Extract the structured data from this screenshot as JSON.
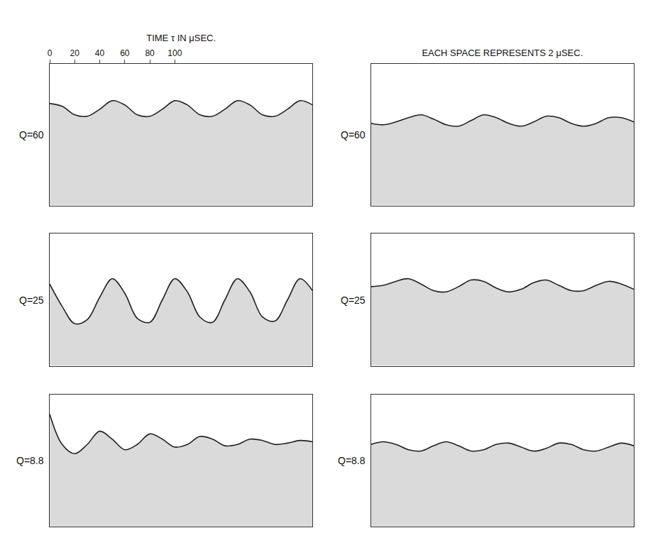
{
  "chart_data": [
    {
      "type": "line",
      "title": "Q=60",
      "xlabel": "TIME τ IN μSEC.",
      "xlim": [
        0,
        210
      ],
      "xticks": [
        0,
        20,
        40,
        60,
        80,
        100
      ],
      "ylim": [
        0,
        1
      ],
      "tick_labels": "x",
      "grid": false,
      "color": "#222222",
      "x": [
        0,
        10,
        20,
        30,
        40,
        50,
        60,
        70,
        80,
        90,
        100,
        110,
        120,
        130,
        140,
        150,
        160,
        170,
        180,
        190,
        200,
        210
      ],
      "values": [
        0.72,
        0.7,
        0.64,
        0.63,
        0.68,
        0.74,
        0.71,
        0.64,
        0.63,
        0.68,
        0.74,
        0.71,
        0.64,
        0.63,
        0.68,
        0.74,
        0.71,
        0.64,
        0.63,
        0.68,
        0.74,
        0.71
      ]
    },
    {
      "type": "line",
      "title": "Q=60",
      "xlabel": "EACH SPACE REPRESENTS 2 μSEC.",
      "xlim": [
        0,
        210
      ],
      "ylim": [
        0,
        1
      ],
      "tick_labels": false,
      "grid": false,
      "color": "#222222",
      "x": [
        0,
        10,
        20,
        30,
        40,
        50,
        60,
        70,
        80,
        90,
        100,
        110,
        120,
        130,
        140,
        150,
        160,
        170,
        180,
        190,
        200,
        210
      ],
      "values": [
        0.58,
        0.57,
        0.59,
        0.62,
        0.64,
        0.61,
        0.57,
        0.56,
        0.6,
        0.64,
        0.62,
        0.58,
        0.56,
        0.59,
        0.63,
        0.62,
        0.58,
        0.56,
        0.58,
        0.62,
        0.62,
        0.59
      ]
    },
    {
      "type": "line",
      "title": "Q=25",
      "xlim": [
        0,
        210
      ],
      "ylim": [
        0,
        1
      ],
      "tick_labels": false,
      "grid": false,
      "color": "#222222",
      "x": [
        0,
        10,
        20,
        30,
        40,
        50,
        60,
        70,
        80,
        90,
        100,
        110,
        120,
        130,
        140,
        150,
        160,
        170,
        180,
        190,
        200,
        210
      ],
      "values": [
        0.62,
        0.45,
        0.32,
        0.35,
        0.52,
        0.66,
        0.55,
        0.36,
        0.33,
        0.5,
        0.66,
        0.56,
        0.37,
        0.33,
        0.5,
        0.66,
        0.56,
        0.37,
        0.34,
        0.5,
        0.66,
        0.57
      ]
    },
    {
      "type": "line",
      "title": "Q=25",
      "xlim": [
        0,
        210
      ],
      "ylim": [
        0,
        1
      ],
      "tick_labels": false,
      "grid": false,
      "color": "#222222",
      "x": [
        0,
        10,
        20,
        30,
        40,
        50,
        60,
        70,
        80,
        90,
        100,
        110,
        120,
        130,
        140,
        150,
        160,
        170,
        180,
        190,
        200,
        210
      ],
      "values": [
        0.6,
        0.61,
        0.64,
        0.66,
        0.62,
        0.57,
        0.56,
        0.6,
        0.65,
        0.64,
        0.59,
        0.56,
        0.58,
        0.63,
        0.65,
        0.61,
        0.57,
        0.57,
        0.61,
        0.64,
        0.62,
        0.58
      ]
    },
    {
      "type": "line",
      "title": "Q=8.8",
      "xlim": [
        0,
        210
      ],
      "ylim": [
        0,
        1
      ],
      "tick_labels": false,
      "grid": false,
      "color": "#222222",
      "x": [
        0,
        10,
        20,
        30,
        40,
        50,
        60,
        70,
        80,
        90,
        100,
        110,
        120,
        130,
        140,
        150,
        160,
        170,
        180,
        190,
        200,
        210
      ],
      "values": [
        0.85,
        0.62,
        0.55,
        0.62,
        0.72,
        0.66,
        0.58,
        0.62,
        0.7,
        0.66,
        0.6,
        0.62,
        0.68,
        0.66,
        0.61,
        0.62,
        0.66,
        0.65,
        0.62,
        0.63,
        0.65,
        0.64
      ]
    },
    {
      "type": "line",
      "title": "Q=8.8",
      "xlim": [
        0,
        210
      ],
      "ylim": [
        0,
        1
      ],
      "tick_labels": false,
      "grid": false,
      "color": "#222222",
      "x": [
        0,
        10,
        20,
        30,
        40,
        50,
        60,
        70,
        80,
        90,
        100,
        110,
        120,
        130,
        140,
        150,
        160,
        170,
        180,
        190,
        200,
        210
      ],
      "values": [
        0.62,
        0.64,
        0.62,
        0.58,
        0.57,
        0.61,
        0.64,
        0.61,
        0.57,
        0.58,
        0.62,
        0.63,
        0.6,
        0.57,
        0.59,
        0.63,
        0.62,
        0.58,
        0.57,
        0.6,
        0.63,
        0.61
      ]
    }
  ]
}
